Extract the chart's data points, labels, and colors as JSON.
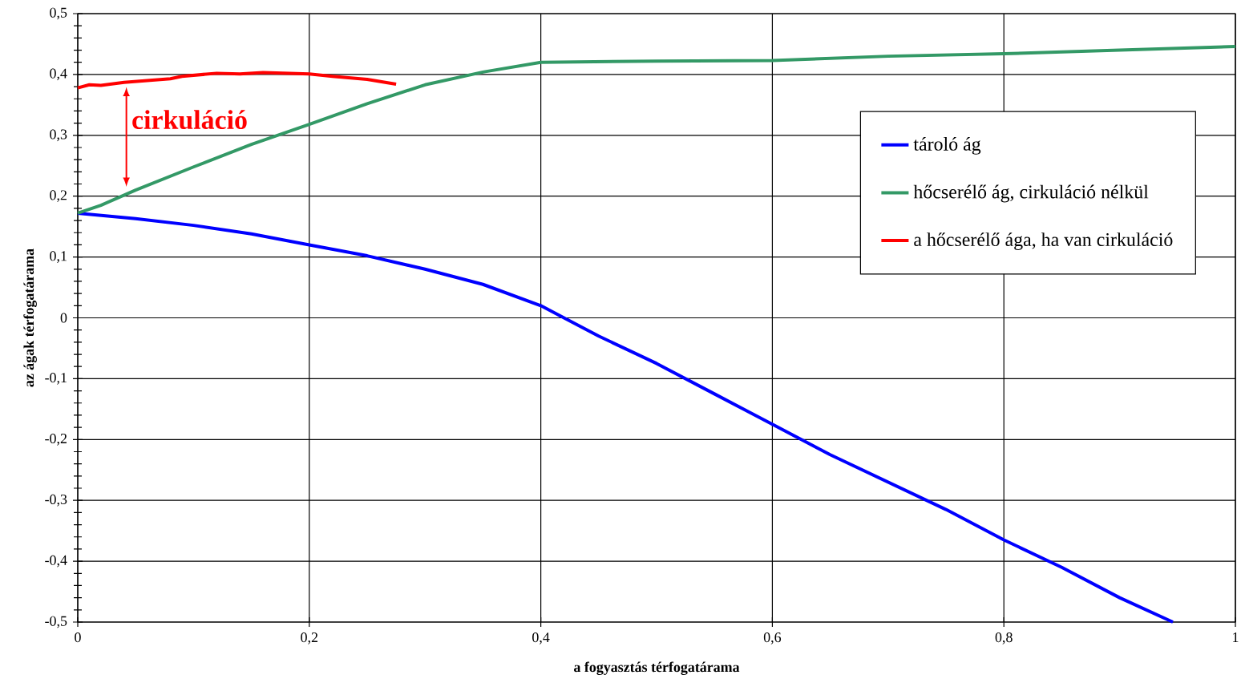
{
  "chart_data": {
    "type": "line",
    "xlabel": "a fogyasztás térfogatárama",
    "ylabel": "az ágak térfogatárama",
    "xlim": [
      0,
      1
    ],
    "ylim": [
      -0.5,
      0.5
    ],
    "xticks": [
      {
        "value": 0,
        "label": "0"
      },
      {
        "value": 0.2,
        "label": "0,2"
      },
      {
        "value": 0.4,
        "label": "0,4"
      },
      {
        "value": 0.6,
        "label": "0,6"
      },
      {
        "value": 0.8,
        "label": "0,8"
      },
      {
        "value": 1,
        "label": "1"
      }
    ],
    "yticks": [
      {
        "value": -0.5,
        "label": "-0,5"
      },
      {
        "value": -0.4,
        "label": "-0,4"
      },
      {
        "value": -0.3,
        "label": "-0,3"
      },
      {
        "value": -0.2,
        "label": "-0,2"
      },
      {
        "value": -0.1,
        "label": "-0,1"
      },
      {
        "value": 0,
        "label": "0"
      },
      {
        "value": 0.1,
        "label": "0,1"
      },
      {
        "value": 0.2,
        "label": "0,2"
      },
      {
        "value": 0.3,
        "label": "0,3"
      },
      {
        "value": 0.4,
        "label": "0,4"
      },
      {
        "value": 0.5,
        "label": "0,5"
      }
    ],
    "grid": true,
    "legend": "top right",
    "marker": "none",
    "line_style": "solid",
    "series": [
      {
        "name": "tároló ág",
        "color": "#0000ff",
        "x": [
          0,
          0.05,
          0.1,
          0.15,
          0.2,
          0.25,
          0.3,
          0.35,
          0.4,
          0.42,
          0.45,
          0.5,
          0.55,
          0.6,
          0.65,
          0.7,
          0.75,
          0.8,
          0.85,
          0.9,
          0.946
        ],
        "values": [
          0.172,
          0.163,
          0.152,
          0.138,
          0.12,
          0.102,
          0.08,
          0.055,
          0.02,
          0.0,
          -0.03,
          -0.075,
          -0.125,
          -0.175,
          -0.225,
          -0.27,
          -0.315,
          -0.365,
          -0.41,
          -0.46,
          -0.5
        ]
      },
      {
        "name": "hőcserélő ág, cirkuláció nélkül",
        "color": "#339966",
        "x": [
          0,
          0.02,
          0.05,
          0.1,
          0.15,
          0.2,
          0.25,
          0.3,
          0.35,
          0.4,
          0.5,
          0.6,
          0.7,
          0.8,
          0.9,
          1.0
        ],
        "values": [
          0.172,
          0.185,
          0.21,
          0.248,
          0.285,
          0.318,
          0.352,
          0.383,
          0.404,
          0.42,
          0.422,
          0.423,
          0.43,
          0.434,
          0.44,
          0.446
        ]
      },
      {
        "name": "a hőcserélő ága, ha van cirkuláció",
        "color": "#ff0000",
        "x": [
          0,
          0.01,
          0.02,
          0.04,
          0.06,
          0.08,
          0.09,
          0.12,
          0.14,
          0.16,
          0.2,
          0.22,
          0.25,
          0.275
        ],
        "values": [
          0.378,
          0.383,
          0.382,
          0.387,
          0.39,
          0.393,
          0.397,
          0.402,
          0.401,
          0.403,
          0.401,
          0.397,
          0.392,
          0.384
        ]
      }
    ],
    "annotations": [
      {
        "text": "cirkuláció",
        "x": 0.042,
        "y": 0.21
      }
    ]
  }
}
